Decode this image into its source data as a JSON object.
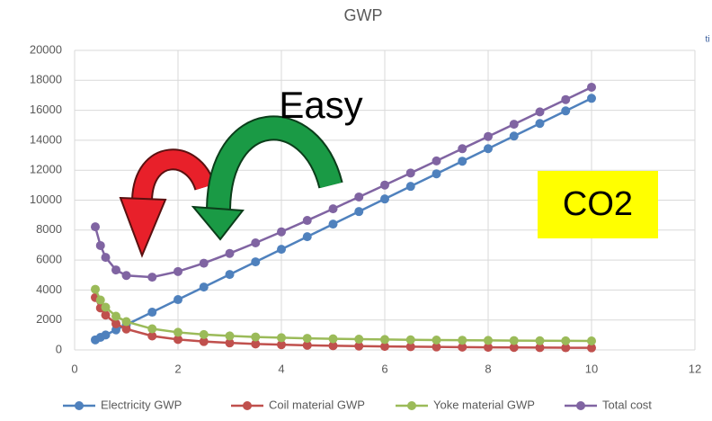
{
  "chart_data": {
    "type": "line",
    "title": "GWP",
    "x": [
      0.4,
      0.5,
      0.6,
      0.8,
      1,
      1.5,
      2,
      2.5,
      3,
      3.5,
      4,
      4.5,
      5,
      5.5,
      6,
      6.5,
      7,
      7.5,
      8,
      8.5,
      9,
      9.5,
      10
    ],
    "series": [
      {
        "name": "Electricity GWP",
        "color": "#4f81bd",
        "values": [
          670,
          840,
          1000,
          1340,
          1680,
          2520,
          3360,
          4200,
          5040,
          5880,
          6720,
          7560,
          8400,
          9240,
          10080,
          10920,
          11760,
          12600,
          13440,
          14280,
          15120,
          15960,
          16800
        ]
      },
      {
        "name": "Coil material GWP",
        "color": "#c0504d",
        "values": [
          3500,
          2800,
          2330,
          1750,
          1400,
          930,
          700,
          560,
          470,
          400,
          350,
          310,
          280,
          255,
          233,
          215,
          200,
          187,
          175,
          165,
          156,
          147,
          140
        ]
      },
      {
        "name": "Yoke material GWP",
        "color": "#9bbb59",
        "values": [
          4050,
          3330,
          2850,
          2250,
          1890,
          1410,
          1175,
          1030,
          935,
          867,
          815,
          775,
          743,
          717,
          696,
          677,
          661,
          648,
          636,
          625,
          616,
          607,
          600
        ]
      },
      {
        "name": "Total cost",
        "color": "#8064a2",
        "values": [
          8220,
          6970,
          6180,
          5340,
          4970,
          4860,
          5235,
          5790,
          6445,
          7147,
          7885,
          8645,
          9423,
          10212,
          11009,
          11812,
          12621,
          13435,
          14251,
          15070,
          15892,
          16714,
          17540
        ]
      }
    ],
    "xlim": [
      0,
      12
    ],
    "xticks": [
      0,
      2,
      4,
      6,
      8,
      10,
      12
    ],
    "ylim": [
      0,
      20000
    ],
    "yticks": [
      0,
      2000,
      4000,
      6000,
      8000,
      10000,
      12000,
      14000,
      16000,
      18000,
      20000
    ],
    "grid": true,
    "legend": "bottom",
    "annotations": [
      "Easy",
      "CO2",
      "ti"
    ]
  }
}
